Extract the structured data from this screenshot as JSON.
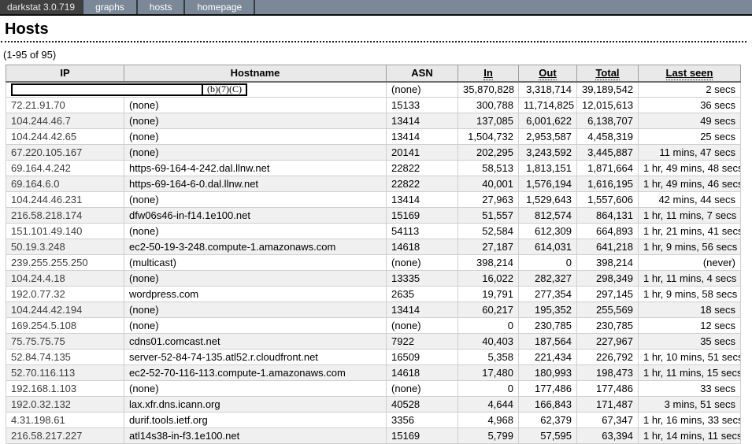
{
  "nav": {
    "brand": "darkstat 3.0.719",
    "items": [
      {
        "label": "graphs"
      },
      {
        "label": "hosts"
      },
      {
        "label": "homepage"
      }
    ]
  },
  "page": {
    "title": "Hosts",
    "pagination": "(1-95 of 95)"
  },
  "colors": {
    "nav_bg": "#7b8898",
    "brand_bg": "#404040",
    "header_bg": "#e9e9e9",
    "stripe_bg": "#f0f0f0"
  },
  "table": {
    "columns": [
      {
        "label": "IP",
        "sortable": false
      },
      {
        "label": "Hostname",
        "sortable": false
      },
      {
        "label": "ASN",
        "sortable": false
      },
      {
        "label": "In",
        "sortable": true
      },
      {
        "label": "Out",
        "sortable": true
      },
      {
        "label": "Total",
        "sortable": true
      },
      {
        "label": "Last seen",
        "sortable": true
      }
    ],
    "rows": [
      {
        "redacted": true,
        "redaction_label": "(b)(7)(C)",
        "asn": "(none)",
        "in": "35,870,828",
        "out": "3,318,714",
        "total": "39,189,542",
        "last_seen": "2 secs"
      },
      {
        "ip": "72.21.91.70",
        "hostname": "(none)",
        "asn": "15133",
        "in": "300,788",
        "out": "11,714,825",
        "total": "12,015,613",
        "last_seen": "36 secs"
      },
      {
        "ip": "104.244.46.7",
        "hostname": "(none)",
        "asn": "13414",
        "in": "137,085",
        "out": "6,001,622",
        "total": "6,138,707",
        "last_seen": "49 secs"
      },
      {
        "ip": "104.244.42.65",
        "hostname": "(none)",
        "asn": "13414",
        "in": "1,504,732",
        "out": "2,953,587",
        "total": "4,458,319",
        "last_seen": "25 secs"
      },
      {
        "ip": "67.220.105.167",
        "hostname": "(none)",
        "asn": "20141",
        "in": "202,295",
        "out": "3,243,592",
        "total": "3,445,887",
        "last_seen": "11 mins, 47 secs"
      },
      {
        "ip": "69.164.4.242",
        "hostname": "https-69-164-4-242.dal.llnw.net",
        "asn": "22822",
        "in": "58,513",
        "out": "1,813,151",
        "total": "1,871,664",
        "last_seen": "1 hr, 49 mins, 48 secs"
      },
      {
        "ip": "69.164.6.0",
        "hostname": "https-69-164-6-0.dal.llnw.net",
        "asn": "22822",
        "in": "40,001",
        "out": "1,576,194",
        "total": "1,616,195",
        "last_seen": "1 hr, 49 mins, 46 secs"
      },
      {
        "ip": "104.244.46.231",
        "hostname": "(none)",
        "asn": "13414",
        "in": "27,963",
        "out": "1,529,643",
        "total": "1,557,606",
        "last_seen": "42 mins, 44 secs"
      },
      {
        "ip": "216.58.218.174",
        "hostname": "dfw06s46-in-f14.1e100.net",
        "asn": "15169",
        "in": "51,557",
        "out": "812,574",
        "total": "864,131",
        "last_seen": "1 hr, 11 mins, 7 secs"
      },
      {
        "ip": "151.101.49.140",
        "hostname": "(none)",
        "asn": "54113",
        "in": "52,584",
        "out": "612,309",
        "total": "664,893",
        "last_seen": "1 hr, 21 mins, 41 secs"
      },
      {
        "ip": "50.19.3.248",
        "hostname": "ec2-50-19-3-248.compute-1.amazonaws.com",
        "asn": "14618",
        "in": "27,187",
        "out": "614,031",
        "total": "641,218",
        "last_seen": "1 hr, 9 mins, 56 secs"
      },
      {
        "ip": "239.255.255.250",
        "hostname": "(multicast)",
        "asn": "(none)",
        "in": "398,214",
        "out": "0",
        "total": "398,214",
        "last_seen": "(never)"
      },
      {
        "ip": "104.24.4.18",
        "hostname": "(none)",
        "asn": "13335",
        "in": "16,022",
        "out": "282,327",
        "total": "298,349",
        "last_seen": "1 hr, 11 mins, 4 secs"
      },
      {
        "ip": "192.0.77.32",
        "hostname": "wordpress.com",
        "asn": "2635",
        "in": "19,791",
        "out": "277,354",
        "total": "297,145",
        "last_seen": "1 hr, 9 mins, 58 secs"
      },
      {
        "ip": "104.244.42.194",
        "hostname": "(none)",
        "asn": "13414",
        "in": "60,217",
        "out": "195,352",
        "total": "255,569",
        "last_seen": "18 secs"
      },
      {
        "ip": "169.254.5.108",
        "hostname": "(none)",
        "asn": "(none)",
        "in": "0",
        "out": "230,785",
        "total": "230,785",
        "last_seen": "12 secs"
      },
      {
        "ip": "75.75.75.75",
        "hostname": "cdns01.comcast.net",
        "asn": "7922",
        "in": "40,403",
        "out": "187,564",
        "total": "227,967",
        "last_seen": "35 secs"
      },
      {
        "ip": "52.84.74.135",
        "hostname": "server-52-84-74-135.atl52.r.cloudfront.net",
        "asn": "16509",
        "in": "5,358",
        "out": "221,434",
        "total": "226,792",
        "last_seen": "1 hr, 10 mins, 51 secs"
      },
      {
        "ip": "52.70.116.113",
        "hostname": "ec2-52-70-116-113.compute-1.amazonaws.com",
        "asn": "14618",
        "in": "17,480",
        "out": "180,993",
        "total": "198,473",
        "last_seen": "1 hr, 11 mins, 15 secs"
      },
      {
        "ip": "192.168.1.103",
        "hostname": "(none)",
        "asn": "(none)",
        "in": "0",
        "out": "177,486",
        "total": "177,486",
        "last_seen": "33 secs"
      },
      {
        "ip": "192.0.32.132",
        "hostname": "lax.xfr.dns.icann.org",
        "asn": "40528",
        "in": "4,644",
        "out": "166,843",
        "total": "171,487",
        "last_seen": "3 mins, 51 secs"
      },
      {
        "ip": "4.31.198.61",
        "hostname": "durif.tools.ietf.org",
        "asn": "3356",
        "in": "4,968",
        "out": "62,379",
        "total": "67,347",
        "last_seen": "1 hr, 16 mins, 33 secs"
      },
      {
        "ip": "216.58.217.227",
        "hostname": "atl14s38-in-f3.1e100.net",
        "asn": "15169",
        "in": "5,799",
        "out": "57,595",
        "total": "63,394",
        "last_seen": "1 hr, 14 mins, 11 secs"
      }
    ]
  }
}
